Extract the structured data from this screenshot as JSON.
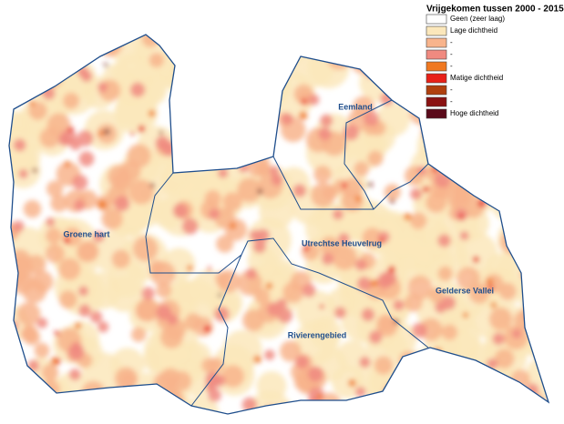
{
  "legend": {
    "title": "Vrijgekomen tussen 2000 - 2015",
    "items": [
      {
        "label": "Geen (zeer laag)",
        "color": "#ffffff"
      },
      {
        "label": "Lage dichtheid",
        "color": "#fbe7bb"
      },
      {
        "label": "-",
        "color": "#f8b48c"
      },
      {
        "label": "-",
        "color": "#f08a80"
      },
      {
        "label": "-",
        "color": "#f07820"
      },
      {
        "label": "Matige dichtheid",
        "color": "#e82018"
      },
      {
        "label": "-",
        "color": "#b0400e"
      },
      {
        "label": "-",
        "color": "#8a1212"
      },
      {
        "label": "Hoge dichtheid",
        "color": "#5a0a1a"
      }
    ]
  },
  "regions": [
    {
      "label": "Eemland"
    },
    {
      "label": "Groene hart"
    },
    {
      "label": "Utrechtse Heuvelrug"
    },
    {
      "label": "Rivierengebied"
    },
    {
      "label": "Gelderse Vallei"
    }
  ]
}
